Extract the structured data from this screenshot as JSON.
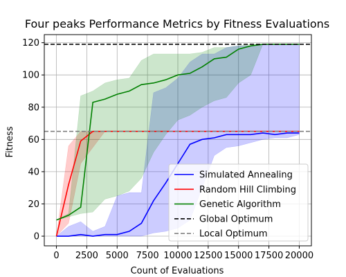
{
  "chart_data": {
    "type": "line",
    "title": "Four peaks Performance Metrics by Fitness Evaluations",
    "xlabel": "Count of Evaluations",
    "ylabel": "Fitness",
    "xlim": [
      -1000,
      21000
    ],
    "ylim": [
      -6,
      125
    ],
    "xticks": [
      0,
      2500,
      5000,
      7500,
      10000,
      12500,
      15000,
      17500,
      20000
    ],
    "yticks": [
      0,
      20,
      40,
      60,
      80,
      100,
      120
    ],
    "grid": true,
    "legend_position": "lower-right",
    "series": [
      {
        "name": "Simulated Annealing",
        "color": "#0000ff",
        "x": [
          0,
          1000,
          2000,
          3000,
          4000,
          5000,
          6000,
          7000,
          8000,
          9000,
          10000,
          11000,
          12000,
          13000,
          14000,
          15000,
          16000,
          17000,
          18000,
          19000,
          20000
        ],
        "values": [
          0,
          0,
          1,
          0,
          1,
          1,
          3,
          8,
          22,
          33,
          45,
          57,
          60,
          61,
          63,
          63,
          63,
          64,
          63,
          64,
          64
        ],
        "band_upper": [
          0,
          6,
          9,
          3,
          6,
          25,
          27,
          27,
          89,
          92,
          98,
          108,
          113,
          113,
          117,
          118,
          118,
          119,
          119,
          119,
          119
        ],
        "band_lower": [
          0,
          0,
          0,
          0,
          0,
          0,
          0,
          0,
          2,
          3,
          5,
          10,
          30,
          50,
          55,
          56,
          58,
          60,
          61,
          61,
          63
        ]
      },
      {
        "name": "Random Hill Climbing",
        "color": "#ff0000",
        "x": [
          0,
          1000,
          2000,
          3000,
          4000,
          5000,
          6000,
          7000,
          8000,
          9000,
          10000,
          11000,
          12000,
          13000,
          14000,
          15000,
          16000,
          17000,
          18000,
          19000,
          20000
        ],
        "values": [
          0,
          32,
          59,
          65,
          65,
          65,
          65,
          65,
          65,
          65,
          65,
          65,
          65,
          65,
          65,
          65,
          65,
          65,
          65,
          65,
          65
        ],
        "band_upper": [
          0,
          56,
          65,
          65,
          65,
          65,
          65,
          65,
          65,
          65,
          65,
          65,
          65,
          65,
          65,
          65,
          65,
          65,
          65,
          65,
          65
        ],
        "band_lower": [
          0,
          8,
          45,
          55,
          65,
          65,
          65,
          65,
          65,
          65,
          65,
          65,
          65,
          65,
          65,
          65,
          65,
          65,
          65,
          65,
          65
        ]
      },
      {
        "name": "Genetic Algorithm",
        "color": "#008000",
        "x": [
          0,
          1000,
          2000,
          3000,
          4000,
          5000,
          6000,
          7000,
          8000,
          9000,
          10000,
          11000,
          12000,
          13000,
          14000,
          15000,
          16000,
          17000,
          18000,
          19000,
          20000
        ],
        "values": [
          10,
          13,
          18,
          83,
          85,
          88,
          90,
          94,
          95,
          97,
          100,
          101,
          105,
          110,
          111,
          116,
          118,
          119,
          119,
          119,
          119
        ],
        "band_upper": [
          10,
          14,
          87,
          90,
          95,
          97,
          98,
          109,
          113,
          113,
          113,
          113,
          114,
          117,
          117,
          118,
          119,
          119,
          119,
          119,
          119
        ],
        "band_lower": [
          10,
          12,
          14,
          15,
          23,
          25,
          28,
          36,
          52,
          63,
          72,
          75,
          80,
          84,
          86,
          95,
          100,
          119,
          119,
          119,
          119
        ]
      },
      {
        "name": "Global Optimum",
        "color": "#000000",
        "dashed": true,
        "hline": 119
      },
      {
        "name": "Local Optimum",
        "color": "#808080",
        "dashed": true,
        "hline": 65
      }
    ]
  }
}
